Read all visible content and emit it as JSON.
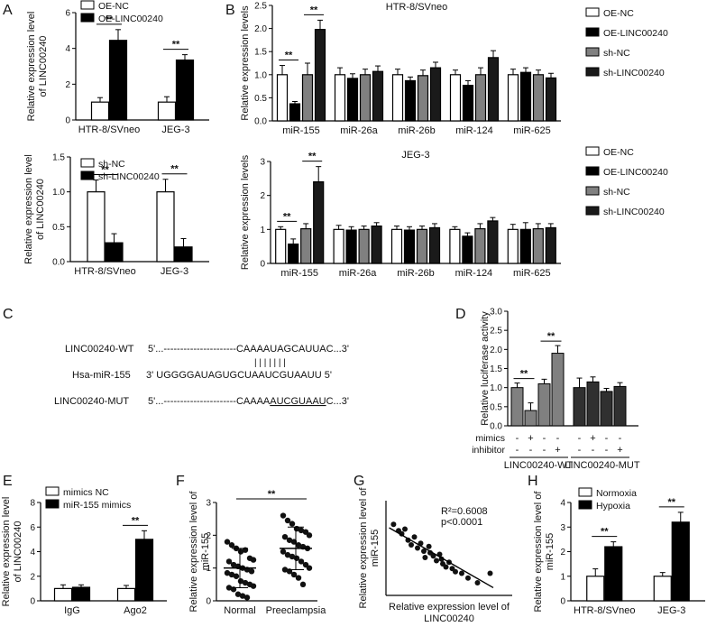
{
  "chart_data": [
    {
      "panel": "A",
      "type": "bar",
      "title": "",
      "ylabel": "Relative expression level of LINC00240",
      "categories": [
        "HTR-8/SVneo",
        "JEG-3"
      ],
      "ylim": [
        0,
        6
      ],
      "yticks": [
        "0",
        "2",
        "4",
        "6"
      ],
      "series": [
        {
          "name": "OE-NC",
          "fill": "#ffffff",
          "values": [
            1.0,
            1.0
          ],
          "errors": [
            0.25,
            0.3
          ]
        },
        {
          "name": "OE-LINC00240",
          "fill": "#000000",
          "values": [
            4.45,
            3.35
          ],
          "errors": [
            0.6,
            0.3
          ]
        }
      ],
      "sig": [
        {
          "category": 0,
          "label": "**"
        },
        {
          "category": 1,
          "label": "**"
        }
      ]
    },
    {
      "panel": "A",
      "type": "bar",
      "title": "",
      "ylabel": "Relative expression level of LINC00240",
      "categories": [
        "HTR-8/SVneo",
        "JEG-3"
      ],
      "ylim": [
        0,
        1.5
      ],
      "yticks": [
        "0.0",
        "0.5",
        "1.0",
        "1.5"
      ],
      "series": [
        {
          "name": "sh-NC",
          "fill": "#ffffff",
          "values": [
            1.0,
            1.0
          ],
          "errors": [
            0.17,
            0.18
          ]
        },
        {
          "name": "sh-LINC00240",
          "fill": "#000000",
          "values": [
            0.27,
            0.21
          ],
          "errors": [
            0.13,
            0.12
          ]
        }
      ],
      "sig": [
        {
          "category": 0,
          "label": "**"
        },
        {
          "category": 1,
          "label": "**"
        }
      ]
    },
    {
      "panel": "B",
      "type": "bar",
      "title": "HTR-8/SVneo",
      "ylabel": "Relative expression levels",
      "categories": [
        "miR-155",
        "miR-26a",
        "miR-26b",
        "miR-124",
        "miR-625"
      ],
      "ylim": [
        0,
        2.5
      ],
      "yticks": [
        "0.0",
        "0.5",
        "1.0",
        "1.5",
        "2.0",
        "2.5"
      ],
      "series": [
        {
          "name": "OE-NC",
          "fill": "#ffffff",
          "values": [
            1.0,
            1.0,
            1.0,
            1.0,
            1.0
          ],
          "errors": [
            0.2,
            0.15,
            0.12,
            0.1,
            0.12
          ]
        },
        {
          "name": "OE-LINC00240",
          "fill": "#000000",
          "values": [
            0.37,
            0.92,
            0.87,
            0.77,
            1.05
          ],
          "errors": [
            0.05,
            0.1,
            0.08,
            0.1,
            0.1
          ]
        },
        {
          "name": "sh-NC",
          "fill": "#808080",
          "values": [
            1.0,
            1.0,
            0.98,
            1.0,
            1.0
          ],
          "errors": [
            0.25,
            0.12,
            0.12,
            0.15,
            0.1
          ]
        },
        {
          "name": "sh-LINC00240",
          "fill": "#1a1a1a",
          "values": [
            1.98,
            1.07,
            1.15,
            1.37,
            0.93
          ],
          "errors": [
            0.2,
            0.12,
            0.12,
            0.15,
            0.1
          ]
        }
      ],
      "sig": [
        {
          "category": 0,
          "pair": [
            0,
            1
          ],
          "label": "**"
        },
        {
          "category": 0,
          "pair": [
            2,
            3
          ],
          "label": "**"
        }
      ]
    },
    {
      "panel": "B",
      "type": "bar",
      "title": "JEG-3",
      "ylabel": "Relative expression levels",
      "categories": [
        "miR-155",
        "miR-26a",
        "miR-26b",
        "miR-124",
        "miR-625"
      ],
      "ylim": [
        0,
        3
      ],
      "yticks": [
        "0",
        "1",
        "2",
        "3"
      ],
      "series": [
        {
          "name": "OE-NC",
          "fill": "#ffffff",
          "values": [
            1.0,
            1.0,
            1.0,
            1.0,
            1.0
          ],
          "errors": [
            0.08,
            0.12,
            0.1,
            0.08,
            0.15
          ]
        },
        {
          "name": "OE-LINC00240",
          "fill": "#000000",
          "values": [
            0.57,
            0.98,
            0.98,
            0.8,
            1.0
          ],
          "errors": [
            0.15,
            0.1,
            0.1,
            0.1,
            0.2
          ]
        },
        {
          "name": "sh-NC",
          "fill": "#808080",
          "values": [
            1.02,
            1.0,
            1.0,
            1.02,
            1.02
          ],
          "errors": [
            0.15,
            0.1,
            0.1,
            0.15,
            0.15
          ]
        },
        {
          "name": "sh-LINC00240",
          "fill": "#1a1a1a",
          "values": [
            2.4,
            1.1,
            1.05,
            1.25,
            1.05
          ],
          "errors": [
            0.45,
            0.1,
            0.12,
            0.1,
            0.12
          ]
        }
      ],
      "sig": [
        {
          "category": 0,
          "pair": [
            0,
            1
          ],
          "label": "**"
        },
        {
          "category": 0,
          "pair": [
            2,
            3
          ],
          "label": "**"
        }
      ]
    },
    {
      "panel": "D",
      "type": "bar",
      "title": "",
      "ylabel": "Relative luciferase activity",
      "categories": [
        "LINC00240-WT",
        "LINC00240-MUT"
      ],
      "ylim": [
        0,
        3
      ],
      "yticks": [
        "0.0",
        "0.5",
        "1.0",
        "1.5",
        "2.0",
        "2.5",
        "3.0"
      ],
      "conditions": {
        "rows": [
          "mimics",
          "inhibitor"
        ],
        "mimics": [
          "-",
          "+",
          "-",
          "-",
          "-",
          "+",
          "-",
          "-"
        ],
        "inhibitor": [
          "-",
          "-",
          "-",
          "+",
          "-",
          "-",
          "-",
          "+"
        ]
      },
      "groups": [
        {
          "fill": "#808080",
          "values": [
            1.0,
            0.4,
            1.1,
            1.9
          ],
          "errors": [
            0.12,
            0.2,
            0.12,
            0.2
          ]
        },
        {
          "fill": "#303030",
          "values": [
            1.0,
            1.15,
            0.9,
            1.03
          ],
          "errors": [
            0.25,
            0.13,
            0.08,
            0.1
          ]
        }
      ],
      "sig": [
        {
          "bars": [
            0,
            1
          ],
          "label": "**"
        },
        {
          "bars": [
            2,
            3
          ],
          "label": "**"
        }
      ]
    },
    {
      "panel": "E",
      "type": "bar",
      "title": "",
      "ylabel": "Relative expression level of LINC00240",
      "categories": [
        "IgG",
        "Ago2"
      ],
      "ylim": [
        0,
        8
      ],
      "yticks": [
        "0",
        "2",
        "4",
        "6",
        "8"
      ],
      "series": [
        {
          "name": "mimics NC",
          "fill": "#ffffff",
          "values": [
            1.0,
            1.0
          ],
          "errors": [
            0.3,
            0.25
          ]
        },
        {
          "name": "miR-155 mimics",
          "fill": "#000000",
          "values": [
            1.1,
            5.0
          ],
          "errors": [
            0.2,
            0.7
          ]
        }
      ],
      "sig": [
        {
          "category": 1,
          "label": "**"
        }
      ]
    },
    {
      "panel": "F",
      "type": "scatter",
      "title": "",
      "ylabel": "Relative expression level of miR-155",
      "categories": [
        "Normal",
        "Preeclampsia"
      ],
      "ylim": [
        0,
        3
      ],
      "yticks": [
        "0",
        "1",
        "2",
        "3"
      ],
      "groups": [
        {
          "name": "Normal",
          "mean": 1.0,
          "sd": 0.6,
          "points": [
            1.8,
            1.7,
            1.6,
            1.5,
            1.55,
            1.3,
            1.25,
            1.2,
            1.1,
            1.05,
            1.0,
            0.95,
            0.9,
            0.85,
            0.8,
            0.75,
            0.6,
            0.55,
            0.5,
            0.45,
            0.4,
            0.35,
            0.2,
            0.15,
            0.1
          ]
        },
        {
          "name": "Preeclampsia",
          "mean": 1.6,
          "sd": 0.65,
          "points": [
            2.6,
            2.45,
            2.35,
            2.2,
            2.15,
            2.1,
            2.0,
            1.95,
            1.85,
            1.8,
            1.7,
            1.65,
            1.6,
            1.5,
            1.4,
            1.35,
            1.3,
            1.2,
            1.1,
            1.0,
            0.95,
            0.9,
            0.8,
            0.7,
            0.5
          ]
        }
      ],
      "sig": [
        {
          "label": "**"
        }
      ]
    },
    {
      "panel": "G",
      "type": "scatter",
      "title": "",
      "xlabel": "Relative expression level of LINC00240",
      "ylabel": "Relative expression level of miR-155",
      "xlim": [
        0,
        2
      ],
      "ylim": [
        0,
        3
      ],
      "annotations": [
        "R²=0.6008",
        "p<0.0001"
      ],
      "fit": {
        "intercept": 2.2,
        "slope": -1.15
      },
      "points": [
        [
          0.12,
          2.25
        ],
        [
          0.2,
          2.05
        ],
        [
          0.25,
          1.95
        ],
        [
          0.3,
          2.1
        ],
        [
          0.35,
          1.75
        ],
        [
          0.4,
          1.6
        ],
        [
          0.45,
          1.85
        ],
        [
          0.5,
          1.5
        ],
        [
          0.55,
          1.65
        ],
        [
          0.6,
          1.4
        ],
        [
          0.62,
          1.2
        ],
        [
          0.7,
          1.35
        ],
        [
          0.75,
          1.25
        ],
        [
          0.8,
          1.1
        ],
        [
          0.85,
          1.3
        ],
        [
          0.9,
          1.0
        ],
        [
          0.95,
          0.9
        ],
        [
          1.0,
          1.05
        ],
        [
          1.05,
          0.85
        ],
        [
          1.1,
          0.75
        ],
        [
          1.2,
          0.7
        ],
        [
          1.3,
          0.55
        ],
        [
          1.45,
          0.4
        ],
        [
          1.65,
          0.7
        ],
        [
          0.68,
          1.55
        ],
        [
          0.88,
          1.15
        ]
      ]
    },
    {
      "panel": "H",
      "type": "bar",
      "title": "",
      "ylabel": "Relative expression level of miR-155",
      "categories": [
        "HTR-8/SVneo",
        "JEG-3"
      ],
      "ylim": [
        0,
        4
      ],
      "yticks": [
        "0",
        "1",
        "2",
        "3",
        "4"
      ],
      "series": [
        {
          "name": "Normoxia",
          "fill": "#ffffff",
          "values": [
            1.0,
            1.0
          ],
          "errors": [
            0.3,
            0.15
          ]
        },
        {
          "name": "Hypoxia",
          "fill": "#000000",
          "values": [
            2.2,
            3.2
          ],
          "errors": [
            0.2,
            0.4
          ]
        }
      ],
      "sig": [
        {
          "category": 0,
          "label": "**"
        },
        {
          "category": 1,
          "label": "**"
        }
      ]
    }
  ],
  "panel_labels": [
    "A",
    "B",
    "C",
    "D",
    "E",
    "F",
    "G",
    "H"
  ],
  "sequence_panel": {
    "rows": [
      {
        "label": "LINC00240-WT",
        "prefix": "5'...----------------------CAAAA",
        "site": "UAGCAUUAC",
        "suffix": "...3'",
        "underline": false
      },
      {
        "label": "Hsa-miR-155",
        "prefix": "3' UGGGGAUAGUGCUAA",
        "site": "UCGUAAU",
        "suffix": "U 5'",
        "underline": false
      },
      {
        "label": "LINC00240-MUT",
        "prefix": "5'...----------------------CAAAA",
        "site": "AUCGUAAU",
        "suffix": "C...3'",
        "underline": true
      }
    ],
    "pair_bars": "| | | | | | |"
  }
}
